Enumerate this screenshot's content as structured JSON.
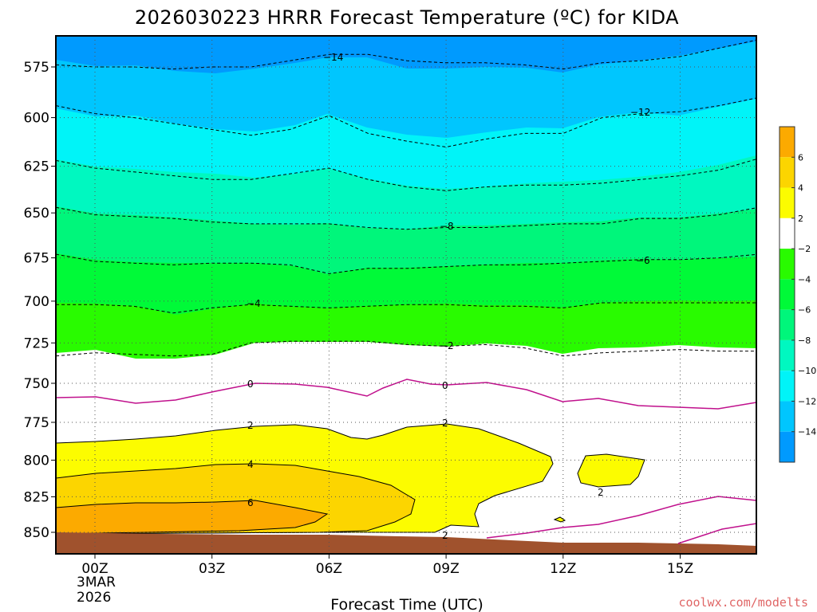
{
  "chart_data": {
    "type": "contour",
    "title": "2026030223 HRRR Forecast Temperature (ºC) for KIDA",
    "xlabel": "Forecast Time (UTC)",
    "x_ticks": [
      "00Z",
      "03Z",
      "06Z",
      "09Z",
      "12Z",
      "15Z"
    ],
    "x_tick_hours": [
      0,
      3,
      6,
      9,
      12,
      15
    ],
    "x_date_label": [
      "3MAR",
      "2026"
    ],
    "xlim_hours": [
      -1,
      17
    ],
    "y_ticks": [
      575,
      600,
      625,
      650,
      675,
      700,
      725,
      750,
      775,
      800,
      825,
      850
    ],
    "ylim_mb": [
      561,
      861
    ],
    "y_scale": "log-pressure",
    "grid": true,
    "colorbar": {
      "labels": [
        "6",
        "4",
        "2",
        "−2",
        "−4",
        "−6",
        "−8",
        "−10",
        "−12",
        "−14"
      ],
      "colors": [
        "#fcaa00",
        "#fcd500",
        "#fcfc00",
        "#ffffff",
        "#29fb00",
        "#00fa38",
        "#00f67b",
        "#00f8c0",
        "#00f4f8",
        "#00c6fe",
        "#009afe"
      ]
    },
    "contour_labels": [
      "−14",
      "−12",
      "−8",
      "−6",
      "−4",
      "−2",
      "0",
      "0",
      "2",
      "2",
      "2",
      "2",
      "4",
      "6"
    ],
    "hours": [
      -1,
      0,
      1,
      2,
      3,
      4,
      5,
      6,
      7,
      8,
      9,
      10,
      11,
      12,
      13,
      14,
      15,
      16,
      17
    ],
    "contours": [
      {
        "level": -14,
        "p": [
          574,
          575,
          575,
          576,
          575,
          575,
          572,
          569,
          569,
          572,
          573,
          573,
          574,
          576,
          573,
          572,
          570,
          566,
          562
        ]
      },
      {
        "level": -12,
        "p": [
          594,
          598,
          600,
          603,
          606,
          609,
          606,
          599,
          608,
          612,
          615,
          611,
          608,
          608,
          600,
          598,
          597,
          594,
          590
        ]
      },
      {
        "level": -10,
        "p": [
          622,
          626,
          628,
          630,
          632,
          632,
          629,
          626,
          632,
          636,
          638,
          636,
          635,
          635,
          634,
          632,
          630,
          627,
          621
        ]
      },
      {
        "level": -8,
        "p": [
          647,
          651,
          652,
          653,
          655,
          656,
          656,
          656,
          658,
          659,
          658,
          658,
          657,
          656,
          656,
          653,
          653,
          651,
          647
        ]
      },
      {
        "level": -6,
        "p": [
          673,
          677,
          678,
          679,
          678,
          678,
          679,
          684,
          681,
          681,
          680,
          679,
          679,
          678,
          677,
          676,
          676,
          675,
          673
        ]
      },
      {
        "level": -4,
        "p": [
          702,
          702,
          703,
          707,
          704,
          702,
          703,
          704,
          703,
          702,
          702,
          703,
          703,
          704,
          701,
          701,
          701,
          701,
          701
        ]
      },
      {
        "level": -2,
        "p": [
          733,
          731,
          732,
          733,
          732,
          725,
          724,
          724,
          724,
          726,
          727,
          726,
          728,
          733,
          731,
          730,
          729,
          730,
          730
        ]
      },
      {
        "level": 0,
        "p": [
          758,
          758,
          763,
          761,
          755,
          750,
          750,
          752,
          757,
          746,
          751,
          750,
          754,
          762,
          761,
          764,
          765,
          766,
          762
        ]
      }
    ],
    "temperature_profile_at_00Z": [
      {
        "p": 575,
        "t": -14
      },
      {
        "p": 600,
        "t": -12
      },
      {
        "p": 625,
        "t": -10
      },
      {
        "p": 650,
        "t": -8
      },
      {
        "p": 675,
        "t": -6
      },
      {
        "p": 700,
        "t": -4
      },
      {
        "p": 730,
        "t": -2
      },
      {
        "p": 760,
        "t": 0
      },
      {
        "p": 789,
        "t": 2
      },
      {
        "p": 812,
        "t": 4
      },
      {
        "p": 836,
        "t": 6
      }
    ]
  },
  "credit": "coolwx.com/modelts"
}
